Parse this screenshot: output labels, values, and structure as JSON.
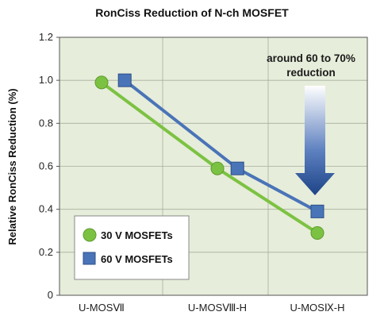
{
  "chart_data": {
    "type": "line",
    "title": "RonCiss Reduction of N-ch MOSFET",
    "xlabel": "",
    "ylabel": "Relative RonCiss Reduction (%)",
    "categories": [
      "U-MOSⅦ",
      "U-MOSⅧ-H",
      "U-MOSⅨ-H"
    ],
    "ylim": [
      0,
      1.2
    ],
    "yticks": [
      "0",
      "0.2",
      "0.4",
      "0.6",
      "0.8",
      "1.0",
      "1.2"
    ],
    "grid": true,
    "legend_position": "bottom-left",
    "series": [
      {
        "name": "30 V MOSFETs",
        "marker": "circle",
        "color": "#7cc242",
        "x": [
          0.0,
          1.0,
          2.0
        ],
        "values": [
          0.99,
          0.59,
          0.29
        ]
      },
      {
        "name": "60 V MOSFETs",
        "marker": "square",
        "color": "#4a74b8",
        "x": [
          0.2,
          1.2,
          2.0
        ],
        "values": [
          1.0,
          0.59,
          0.39
        ]
      }
    ],
    "annotation": {
      "lines": [
        "around 60 to 70%",
        "reduction"
      ]
    }
  },
  "colors": {
    "plot_background": "#e6edda",
    "grid": "#a8ae9e",
    "axis": "#555555",
    "arrow_dark": "#1d4487",
    "arrow_light": "#ffffff"
  }
}
